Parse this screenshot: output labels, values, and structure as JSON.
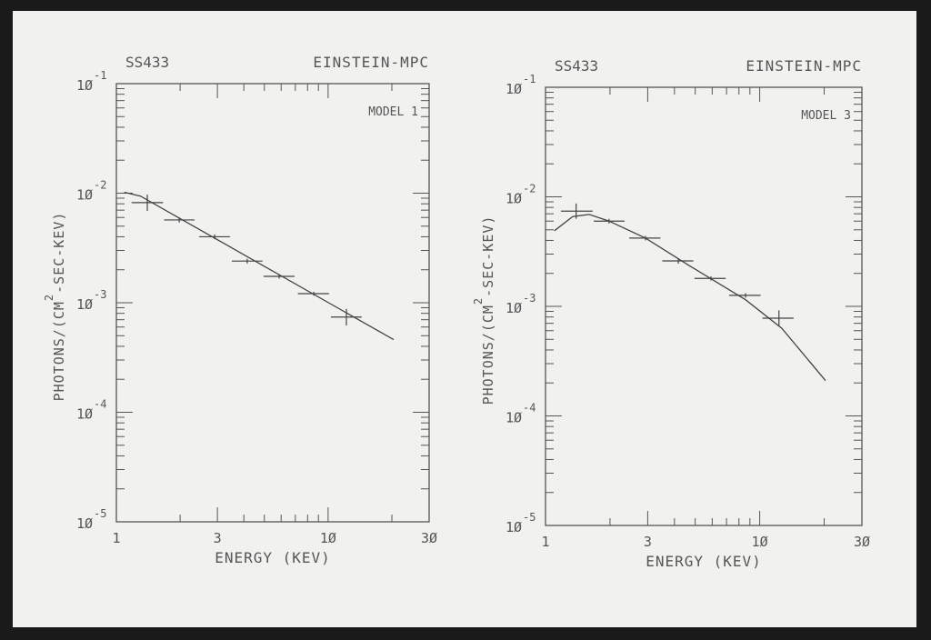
{
  "chart_data": [
    {
      "type": "line",
      "title_left": "SS433",
      "title_right": "EINSTEIN-MPC",
      "annotation": "MODEL 1",
      "xlabel": "ENERGY (KEV)",
      "ylabel": "PHOTONS/(CM",
      "ylabel_sup": "2",
      "ylabel_tail": "-SEC-KEV)",
      "xscale": "log",
      "yscale": "log",
      "xlim": [
        1,
        30
      ],
      "ylim": [
        1e-05,
        0.1
      ],
      "x_ticks": [
        {
          "v": 1,
          "label": "1"
        },
        {
          "v": 3,
          "label": "3"
        },
        {
          "v": 10,
          "label": "1Ø"
        },
        {
          "v": 30,
          "label": "3Ø"
        }
      ],
      "y_ticks": [
        {
          "v": 0.1,
          "base": "1Ø",
          "exp": "-1"
        },
        {
          "v": 0.01,
          "base": "1Ø",
          "exp": "-2"
        },
        {
          "v": 0.001,
          "base": "1Ø",
          "exp": "-3"
        },
        {
          "v": 0.0001,
          "base": "1Ø",
          "exp": "-4"
        },
        {
          "v": 1e-05,
          "base": "1Ø",
          "exp": "-5"
        }
      ],
      "points": {
        "x": [
          1.4,
          1.98,
          2.91,
          4.15,
          5.87,
          8.55,
          12.2
        ],
        "y": [
          0.0082,
          0.0057,
          0.004,
          0.0024,
          0.00174,
          0.00121,
          0.00074
        ],
        "x_lo": [
          1.18,
          1.68,
          2.46,
          3.51,
          4.96,
          7.2,
          10.3
        ],
        "x_hi": [
          1.66,
          2.34,
          3.44,
          4.9,
          6.94,
          10.1,
          14.4
        ],
        "y_lo": [
          0.0069,
          0.0054,
          0.0038,
          0.00228,
          0.00166,
          0.00116,
          0.00062
        ],
        "y_hi": [
          0.0097,
          0.006,
          0.0042,
          0.00252,
          0.00182,
          0.00126,
          0.00088
        ]
      },
      "model": {
        "x": [
          1.09,
          1.3,
          20.4
        ],
        "y": [
          0.0102,
          0.0094,
          0.00046
        ]
      }
    },
    {
      "type": "line",
      "title_left": "SS433",
      "title_right": "EINSTEIN-MPC",
      "annotation": "MODEL 3",
      "xlabel": "ENERGY (KEV)",
      "ylabel": "PHOTONS/(CM",
      "ylabel_sup": "2",
      "ylabel_tail": "-SEC-KEV)",
      "xscale": "log",
      "yscale": "log",
      "xlim": [
        1,
        30
      ],
      "ylim": [
        1e-05,
        0.1
      ],
      "x_ticks": [
        {
          "v": 1,
          "label": "1"
        },
        {
          "v": 3,
          "label": "3"
        },
        {
          "v": 10,
          "label": "1Ø"
        },
        {
          "v": 30,
          "label": "3Ø"
        }
      ],
      "y_ticks": [
        {
          "v": 0.1,
          "base": "1Ø",
          "exp": "-1"
        },
        {
          "v": 0.01,
          "base": "1Ø",
          "exp": "-2"
        },
        {
          "v": 0.001,
          "base": "1Ø",
          "exp": "-3"
        },
        {
          "v": 0.0001,
          "base": "1Ø",
          "exp": "-4"
        },
        {
          "v": 1e-05,
          "base": "1Ø",
          "exp": "-5"
        }
      ],
      "points": {
        "x": [
          1.39,
          1.98,
          2.93,
          4.17,
          5.92,
          8.59,
          12.3
        ],
        "y": [
          0.0074,
          0.006,
          0.0042,
          0.0026,
          0.0018,
          0.00126,
          0.00078
        ],
        "x_lo": [
          1.18,
          1.68,
          2.46,
          3.51,
          4.96,
          7.2,
          10.3
        ],
        "x_hi": [
          1.66,
          2.34,
          3.44,
          4.9,
          6.94,
          10.1,
          14.4
        ],
        "y_lo": [
          0.0063,
          0.0057,
          0.004,
          0.00245,
          0.00172,
          0.0012,
          0.00066
        ],
        "y_hi": [
          0.0087,
          0.0063,
          0.0044,
          0.00275,
          0.00188,
          0.00132,
          0.00092
        ]
      },
      "model": {
        "x": [
          1.1,
          1.34,
          1.6,
          1.98,
          2.93,
          4.78,
          8.59,
          12.7,
          20.3
        ],
        "y": [
          0.0049,
          0.0066,
          0.0069,
          0.006,
          0.0042,
          0.0023,
          0.00115,
          0.00063,
          0.00021
        ]
      }
    }
  ]
}
